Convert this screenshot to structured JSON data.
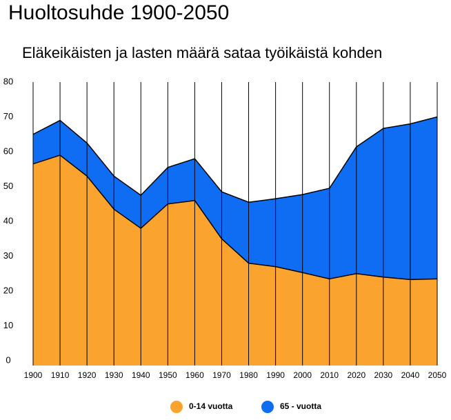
{
  "chart_data": {
    "type": "stacked-area",
    "title": "Huoltosuhde 1900-2050",
    "subtitle": "Eläkeikäisten ja lasten määrä sataa työikäistä kohden",
    "x": [
      1900,
      1910,
      1920,
      1930,
      1940,
      1950,
      1960,
      1970,
      1980,
      1990,
      2000,
      2010,
      2020,
      2030,
      2040,
      2050
    ],
    "xlim": [
      1900,
      2050
    ],
    "xticks": [
      1900,
      1910,
      1920,
      1930,
      1940,
      1950,
      1960,
      1970,
      1980,
      1990,
      2000,
      2010,
      2020,
      2030,
      2040,
      2050
    ],
    "ylim": [
      0,
      80
    ],
    "yticks": [
      0,
      10,
      20,
      30,
      40,
      50,
      60,
      70,
      80
    ],
    "grid": true,
    "series": [
      {
        "name": "0-14 vuotta",
        "color": "#fba32f",
        "values": [
          56.5,
          59,
          53,
          43.5,
          38,
          45,
          46,
          35,
          28,
          27,
          25.3,
          23.5,
          25,
          24,
          23.3,
          23.5
        ]
      },
      {
        "name": "65 - vuotta",
        "color": "#0f6df4",
        "values": [
          8.5,
          10,
          9.5,
          9.5,
          9.5,
          10.5,
          12,
          13.5,
          17.5,
          19.5,
          22.4,
          26,
          36.4,
          42.7,
          44.7,
          46.5
        ]
      }
    ]
  }
}
